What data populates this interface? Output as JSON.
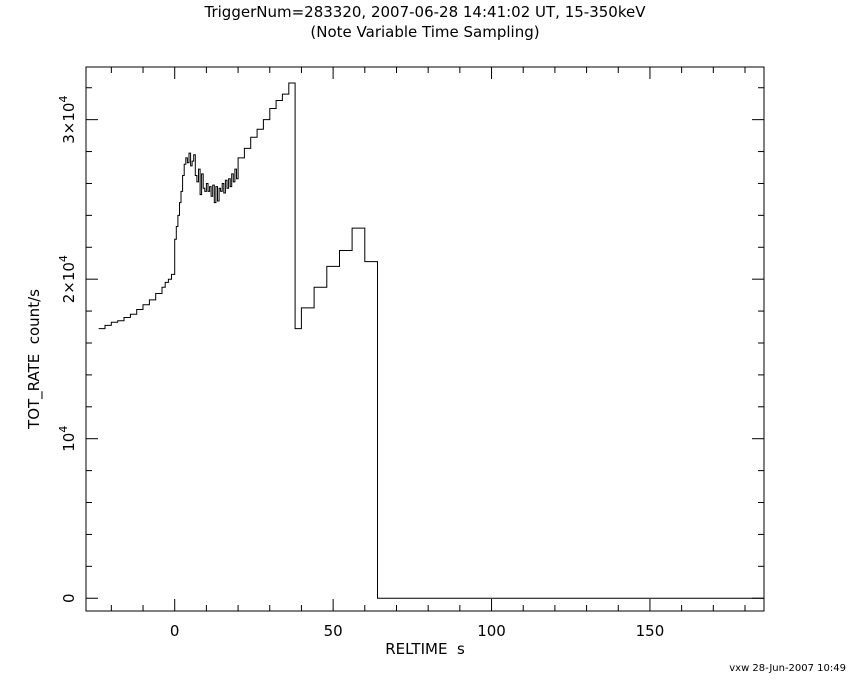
{
  "chart_data": {
    "type": "line",
    "title": "TriggerNum=283320, 2007-06-28 14:41:02 UT, 15-350keV",
    "subtitle": "(Note Variable Time Sampling)",
    "xlabel": "RELTIME  s",
    "ylabel": "TOT_RATE  count/s",
    "xlim": [
      -28,
      186
    ],
    "ylim": [
      -800,
      33300
    ],
    "x_ticks": [
      0,
      50,
      100,
      150
    ],
    "x_tick_labels": [
      "0",
      "50",
      "100",
      "150"
    ],
    "y_ticks": [
      0,
      10000,
      20000,
      30000
    ],
    "y_tick_labels": [
      {
        "base": "0",
        "exp": ""
      },
      {
        "base": "10",
        "exp": "4"
      },
      {
        "base": "2×10",
        "exp": "4"
      },
      {
        "base": "3×10",
        "exp": "4"
      }
    ],
    "grid": false,
    "series": [
      {
        "step": true,
        "x": [
          -24,
          -22,
          -20,
          -18,
          -16,
          -14,
          -12,
          -10,
          -8,
          -6,
          -4,
          -3,
          -2,
          -1,
          0,
          0.5,
          1,
          1.5,
          2,
          2.5,
          3,
          3.5,
          4,
          4.5,
          5,
          5.5,
          6,
          6.5,
          7,
          7.5,
          8,
          8.5,
          9,
          9.5,
          10,
          10.5,
          11,
          11.5,
          12,
          12.5,
          13,
          13.5,
          14,
          14.5,
          15,
          15.5,
          16,
          16.5,
          17,
          17.5,
          18,
          18.5,
          19,
          19.5,
          20,
          22,
          24,
          26,
          28,
          30,
          32,
          34,
          36,
          38,
          40,
          44,
          48,
          52,
          56,
          60,
          64,
          66,
          186
        ],
        "values": [
          16900,
          17100,
          17300,
          17400,
          17600,
          17800,
          18100,
          18400,
          18700,
          19100,
          19500,
          19800,
          20000,
          20300,
          22500,
          23300,
          24000,
          24800,
          25500,
          26500,
          27200,
          27600,
          27300,
          27900,
          27100,
          27400,
          27800,
          26500,
          26100,
          26900,
          25300,
          26600,
          25700,
          25500,
          26000,
          25500,
          25800,
          25200,
          25900,
          24800,
          25800,
          24900,
          25700,
          25500,
          26000,
          25400,
          26200,
          25700,
          26300,
          25800,
          26600,
          26100,
          26900,
          26300,
          27600,
          28200,
          28900,
          29400,
          30000,
          30700,
          31200,
          31600,
          32300,
          16900,
          18200,
          19500,
          20800,
          21800,
          23200,
          21100,
          0,
          0,
          0
        ]
      }
    ]
  },
  "footer": "vxw 28-Jun-2007 10:49"
}
